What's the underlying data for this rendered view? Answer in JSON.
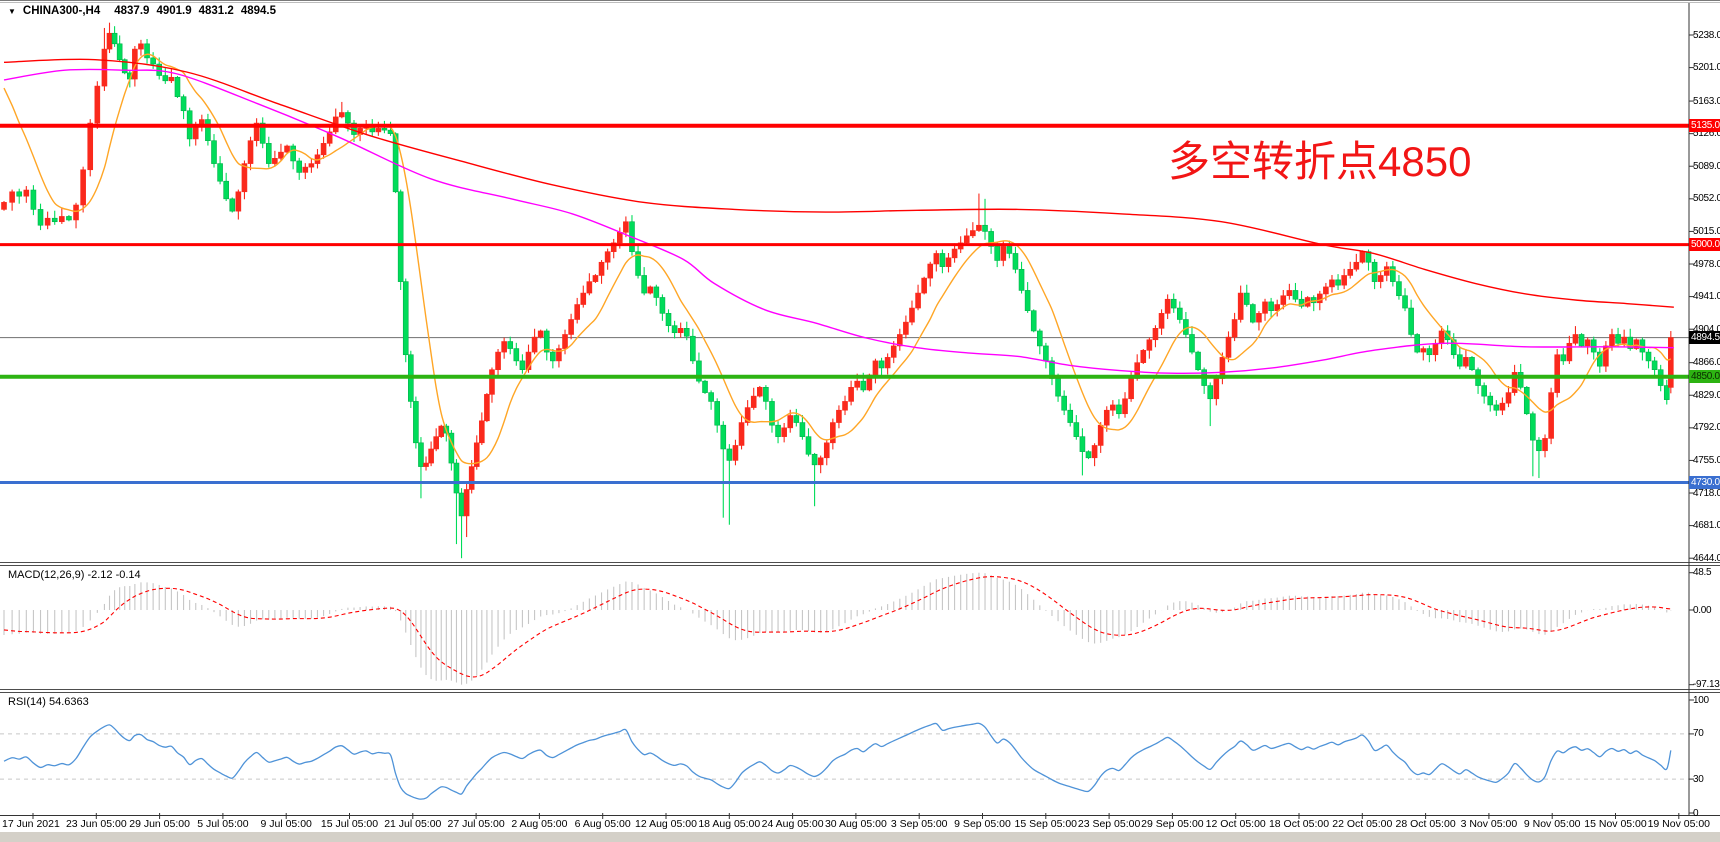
{
  "header": {
    "dropdown_icon": "▼",
    "symbol": "CHINA300-,H4",
    "open": "4837.9",
    "high": "4901.9",
    "low": "4831.2",
    "close": "4894.5"
  },
  "annotation": {
    "text": "多空转折点4850",
    "color": "#f21515"
  },
  "price_axis": {
    "ticks": [
      "5238.0",
      "5201.0",
      "5163.0",
      "5126.0",
      "5089.0",
      "5052.0",
      "5015.0",
      "4978.0",
      "4941.0",
      "4904.0",
      "4866.0",
      "4829.0",
      "4792.0",
      "4755.0",
      "4718.0",
      "4681.0",
      "4644.0"
    ]
  },
  "badges": [
    {
      "label": "5135.0",
      "price": 5135,
      "bg": "#ff0000",
      "fg": "#ffffff"
    },
    {
      "label": "5000.0",
      "price": 5000,
      "bg": "#ff0000",
      "fg": "#ffffff"
    },
    {
      "label": "4894.5",
      "price": 4894.5,
      "bg": "#000000",
      "fg": "#ffffff"
    },
    {
      "label": "4850.0",
      "price": 4850,
      "bg": "#2db312",
      "fg": "#0a2a00"
    },
    {
      "label": "4730.0",
      "price": 4730,
      "bg": "#3a6fd0",
      "fg": "#ffffff"
    }
  ],
  "macd_panel": {
    "label": "MACD(12,26,9) -2.12 -0.14",
    "ticks": [
      "48.5",
      "0.00",
      "-97.13"
    ],
    "tick_values": [
      48.5,
      0,
      -97.13
    ]
  },
  "rsi_panel": {
    "label": "RSI(14) 54.6363",
    "ticks": [
      "100",
      "70",
      "30",
      "0"
    ],
    "tick_values": [
      100,
      70,
      30,
      0
    ],
    "levels": [
      70,
      30
    ]
  },
  "time_axis": {
    "labels": [
      "17 Jun 2021",
      "23 Jun 05:00",
      "29 Jun 05:00",
      "5 Jul 05:00",
      "9 Jul 05:00",
      "15 Jul 05:00",
      "21 Jul 05:00",
      "27 Jul 05:00",
      "2 Aug 05:00",
      "6 Aug 05:00",
      "12 Aug 05:00",
      "18 Aug 05:00",
      "24 Aug 05:00",
      "30 Aug 05:00",
      "3 Sep 05:00",
      "9 Sep 05:00",
      "15 Sep 05:00",
      "23 Sep 05:00",
      "29 Sep 05:00",
      "12 Oct 05:00",
      "18 Oct 05:00",
      "22 Oct 05:00",
      "28 Oct 05:00",
      "3 Nov 05:00",
      "9 Nov 05:00",
      "15 Nov 05:00",
      "19 Nov 05:00"
    ]
  },
  "chart_data": {
    "type": "candlestick",
    "symbol": "CHINA300-",
    "timeframe": "H4",
    "title": "CHINA300-,H4  4837.9 4901.9 4831.2 4894.5",
    "last_candle": {
      "open": 4837.9,
      "high": 4901.9,
      "low": 4831.2,
      "close": 4894.5
    },
    "ylim": [
      4644,
      5238
    ],
    "indicators": [
      "MACD(12,26,9)",
      "RSI(14)"
    ],
    "macd_values": {
      "main": -2.12,
      "signal": -0.14,
      "max": 48.5,
      "min": -97.13
    },
    "rsi_value": 54.6363,
    "horizontal_levels": [
      {
        "price": 5135,
        "color": "#ff0000",
        "width": 4,
        "style": "support-resistance"
      },
      {
        "price": 5000,
        "color": "#ff0000",
        "width": 3,
        "style": "support-resistance"
      },
      {
        "price": 4850,
        "color": "#2db312",
        "width": 4,
        "style": "pivot"
      },
      {
        "price": 4730,
        "color": "#3a6fd0",
        "width": 3,
        "style": "support"
      },
      {
        "price": 4894.5,
        "color": "#808080",
        "width": 1.2,
        "style": "current-price"
      }
    ],
    "colors": {
      "bull": "#fa291c",
      "bear": "#00dc5a",
      "bear_border": "#00b14a",
      "ma_red": "#ff0000",
      "ma_magenta": "#ff00ff",
      "ma_orange": "#ffa626",
      "macd_hist": "#c6c6c6",
      "macd_signal": "#ff0000",
      "rsi": "#4f93d8",
      "axis": "#333333",
      "grid_dash": "#c8c8c8"
    },
    "closes": [
      [
        0,
        5048
      ],
      [
        8,
        5060
      ],
      [
        15,
        5055
      ],
      [
        22,
        5062
      ],
      [
        29,
        5040
      ],
      [
        36,
        5022
      ],
      [
        43,
        5030
      ],
      [
        50,
        5026
      ],
      [
        57,
        5032
      ],
      [
        64,
        5028
      ],
      [
        71,
        5045
      ],
      [
        78,
        5085
      ],
      [
        85,
        5138
      ],
      [
        92,
        5180
      ],
      [
        99,
        5222
      ],
      [
        104,
        5240
      ],
      [
        109,
        5228
      ],
      [
        114,
        5210
      ],
      [
        119,
        5195
      ],
      [
        124,
        5188
      ],
      [
        129,
        5222
      ],
      [
        135,
        5228
      ],
      [
        141,
        5212
      ],
      [
        147,
        5205
      ],
      [
        153,
        5192
      ],
      [
        159,
        5186
      ],
      [
        165,
        5190
      ],
      [
        171,
        5168
      ],
      [
        177,
        5152
      ],
      [
        183,
        5120
      ],
      [
        189,
        5135
      ],
      [
        195,
        5142
      ],
      [
        201,
        5118
      ],
      [
        207,
        5092
      ],
      [
        213,
        5072
      ],
      [
        219,
        5052
      ],
      [
        225,
        5038
      ],
      [
        231,
        5060
      ],
      [
        237,
        5092
      ],
      [
        243,
        5118
      ],
      [
        249,
        5138
      ],
      [
        255,
        5115
      ],
      [
        261,
        5092
      ],
      [
        267,
        5098
      ],
      [
        273,
        5105
      ],
      [
        279,
        5112
      ],
      [
        285,
        5095
      ],
      [
        291,
        5082
      ],
      [
        297,
        5088
      ],
      [
        303,
        5092
      ],
      [
        309,
        5102
      ],
      [
        315,
        5115
      ],
      [
        321,
        5128
      ],
      [
        327,
        5145
      ],
      [
        333,
        5150
      ],
      [
        339,
        5138
      ],
      [
        345,
        5125
      ],
      [
        351,
        5132
      ],
      [
        357,
        5136
      ],
      [
        363,
        5128
      ],
      [
        369,
        5132
      ],
      [
        375,
        5130
      ],
      [
        381,
        5126
      ],
      [
        386,
        5060
      ],
      [
        391,
        4958
      ],
      [
        396,
        4875
      ],
      [
        401,
        4822
      ],
      [
        406,
        4775
      ],
      [
        411,
        4748
      ],
      [
        416,
        4752
      ],
      [
        421,
        4768
      ],
      [
        426,
        4782
      ],
      [
        431,
        4794
      ],
      [
        436,
        4786
      ],
      [
        441,
        4752
      ],
      [
        446,
        4718
      ],
      [
        451,
        4692
      ],
      [
        456,
        4722
      ],
      [
        461,
        4748
      ],
      [
        466,
        4775
      ],
      [
        471,
        4800
      ],
      [
        476,
        4830
      ],
      [
        481,
        4858
      ],
      [
        487,
        4878
      ],
      [
        493,
        4890
      ],
      [
        499,
        4882
      ],
      [
        505,
        4868
      ],
      [
        511,
        4858
      ],
      [
        517,
        4878
      ],
      [
        523,
        4895
      ],
      [
        529,
        4902
      ],
      [
        535,
        4878
      ],
      [
        541,
        4868
      ],
      [
        547,
        4882
      ],
      [
        553,
        4898
      ],
      [
        559,
        4915
      ],
      [
        565,
        4932
      ],
      [
        571,
        4945
      ],
      [
        577,
        4958
      ],
      [
        583,
        4965
      ],
      [
        589,
        4980
      ],
      [
        595,
        4992
      ],
      [
        601,
        5002
      ],
      [
        607,
        5014
      ],
      [
        613,
        5026
      ],
      [
        619,
        4992
      ],
      [
        625,
        4965
      ],
      [
        631,
        4945
      ],
      [
        637,
        4952
      ],
      [
        643,
        4940
      ],
      [
        649,
        4922
      ],
      [
        655,
        4908
      ],
      [
        661,
        4900
      ],
      [
        667,
        4905
      ],
      [
        673,
        4896
      ],
      [
        679,
        4868
      ],
      [
        685,
        4845
      ],
      [
        691,
        4832
      ],
      [
        697,
        4822
      ],
      [
        703,
        4795
      ],
      [
        709,
        4768
      ],
      [
        715,
        4755
      ],
      [
        721,
        4772
      ],
      [
        727,
        4798
      ],
      [
        733,
        4815
      ],
      [
        739,
        4828
      ],
      [
        745,
        4838
      ],
      [
        751,
        4822
      ],
      [
        757,
        4795
      ],
      [
        763,
        4782
      ],
      [
        769,
        4792
      ],
      [
        775,
        4806
      ],
      [
        781,
        4798
      ],
      [
        787,
        4782
      ],
      [
        793,
        4762
      ],
      [
        799,
        4750
      ],
      [
        805,
        4758
      ],
      [
        811,
        4775
      ],
      [
        817,
        4798
      ],
      [
        823,
        4812
      ],
      [
        829,
        4822
      ],
      [
        835,
        4838
      ],
      [
        841,
        4845
      ],
      [
        847,
        4835
      ],
      [
        853,
        4852
      ],
      [
        859,
        4868
      ],
      [
        865,
        4860
      ],
      [
        871,
        4872
      ],
      [
        877,
        4885
      ],
      [
        883,
        4898
      ],
      [
        889,
        4912
      ],
      [
        895,
        4928
      ],
      [
        901,
        4945
      ],
      [
        907,
        4962
      ],
      [
        913,
        4978
      ],
      [
        919,
        4990
      ],
      [
        925,
        4975
      ],
      [
        931,
        4985
      ],
      [
        937,
        4995
      ],
      [
        943,
        5002
      ],
      [
        949,
        5010
      ],
      [
        955,
        5016
      ],
      [
        961,
        5022
      ],
      [
        967,
        5015
      ],
      [
        973,
        4998
      ],
      [
        979,
        4982
      ],
      [
        985,
        4998
      ],
      [
        991,
        4990
      ],
      [
        997,
        4972
      ],
      [
        1003,
        4948
      ],
      [
        1009,
        4925
      ],
      [
        1015,
        4902
      ],
      [
        1021,
        4885
      ],
      [
        1027,
        4868
      ],
      [
        1033,
        4848
      ],
      [
        1039,
        4828
      ],
      [
        1045,
        4812
      ],
      [
        1051,
        4798
      ],
      [
        1057,
        4782
      ],
      [
        1063,
        4765
      ],
      [
        1069,
        4758
      ],
      [
        1075,
        4772
      ],
      [
        1081,
        4795
      ],
      [
        1087,
        4812
      ],
      [
        1093,
        4818
      ],
      [
        1099,
        4808
      ],
      [
        1105,
        4825
      ],
      [
        1111,
        4848
      ],
      [
        1117,
        4866
      ],
      [
        1123,
        4880
      ],
      [
        1129,
        4892
      ],
      [
        1135,
        4905
      ],
      [
        1141,
        4922
      ],
      [
        1147,
        4938
      ],
      [
        1153,
        4928
      ],
      [
        1159,
        4915
      ],
      [
        1165,
        4898
      ],
      [
        1171,
        4878
      ],
      [
        1177,
        4858
      ],
      [
        1183,
        4840
      ],
      [
        1189,
        4825
      ],
      [
        1195,
        4848
      ],
      [
        1201,
        4872
      ],
      [
        1207,
        4895
      ],
      [
        1213,
        4915
      ],
      [
        1219,
        4945
      ],
      [
        1225,
        4932
      ],
      [
        1231,
        4912
      ],
      [
        1237,
        4922
      ],
      [
        1243,
        4935
      ],
      [
        1249,
        4925
      ],
      [
        1255,
        4932
      ],
      [
        1261,
        4942
      ],
      [
        1267,
        4948
      ],
      [
        1273,
        4938
      ],
      [
        1279,
        4930
      ],
      [
        1285,
        4940
      ],
      [
        1291,
        4934
      ],
      [
        1297,
        4944
      ],
      [
        1303,
        4952
      ],
      [
        1309,
        4960
      ],
      [
        1315,
        4954
      ],
      [
        1321,
        4965
      ],
      [
        1327,
        4972
      ],
      [
        1333,
        4980
      ],
      [
        1339,
        4992
      ],
      [
        1345,
        4980
      ],
      [
        1351,
        4958
      ],
      [
        1357,
        4965
      ],
      [
        1363,
        4975
      ],
      [
        1369,
        4958
      ],
      [
        1375,
        4942
      ],
      [
        1381,
        4928
      ],
      [
        1387,
        4898
      ],
      [
        1393,
        4878
      ],
      [
        1399,
        4882
      ],
      [
        1405,
        4875
      ],
      [
        1411,
        4888
      ],
      [
        1417,
        4902
      ],
      [
        1423,
        4892
      ],
      [
        1429,
        4875
      ],
      [
        1435,
        4862
      ],
      [
        1441,
        4872
      ],
      [
        1447,
        4858
      ],
      [
        1453,
        4840
      ],
      [
        1459,
        4828
      ],
      [
        1465,
        4818
      ],
      [
        1471,
        4812
      ],
      [
        1477,
        4820
      ],
      [
        1483,
        4832
      ],
      [
        1489,
        4855
      ],
      [
        1495,
        4838
      ],
      [
        1501,
        4808
      ],
      [
        1507,
        4778
      ],
      [
        1513,
        4766
      ],
      [
        1519,
        4780
      ],
      [
        1525,
        4832
      ],
      [
        1531,
        4875
      ],
      [
        1537,
        4868
      ],
      [
        1543,
        4888
      ],
      [
        1549,
        4898
      ],
      [
        1555,
        4885
      ],
      [
        1561,
        4892
      ],
      [
        1567,
        4878
      ],
      [
        1573,
        4862
      ],
      [
        1579,
        4885
      ],
      [
        1585,
        4898
      ],
      [
        1591,
        4888
      ],
      [
        1597,
        4895
      ],
      [
        1603,
        4882
      ],
      [
        1609,
        4892
      ],
      [
        1615,
        4878
      ],
      [
        1621,
        4868
      ],
      [
        1627,
        4858
      ],
      [
        1633,
        4840
      ],
      [
        1639,
        4824
      ],
      [
        1643,
        4894.5
      ]
    ],
    "wick_overrides": [
      [
        99,
        "h",
        5246
      ],
      [
        104,
        "h",
        5252
      ],
      [
        109,
        "h",
        5248
      ],
      [
        333,
        "h",
        5162
      ],
      [
        613,
        "h",
        5032
      ],
      [
        961,
        "h",
        5058
      ],
      [
        967,
        "h",
        5052
      ],
      [
        411,
        "l",
        4712
      ],
      [
        446,
        "l",
        4660
      ],
      [
        451,
        "l",
        4644
      ],
      [
        456,
        "l",
        4668
      ],
      [
        709,
        "l",
        4690
      ],
      [
        715,
        "l",
        4682
      ],
      [
        799,
        "l",
        4703
      ],
      [
        1063,
        "l",
        4738
      ],
      [
        1189,
        "l",
        4794
      ],
      [
        1507,
        "l",
        4737
      ],
      [
        1513,
        "l",
        4735
      ]
    ],
    "ma_red": [
      [
        0,
        5207
      ],
      [
        90,
        5210
      ],
      [
        180,
        5196
      ],
      [
        270,
        5160
      ],
      [
        360,
        5124
      ],
      [
        450,
        5095
      ],
      [
        540,
        5068
      ],
      [
        630,
        5048
      ],
      [
        720,
        5040
      ],
      [
        810,
        5037
      ],
      [
        900,
        5039
      ],
      [
        1000,
        5040
      ],
      [
        1100,
        5035
      ],
      [
        1200,
        5026
      ],
      [
        1300,
        5000
      ],
      [
        1350,
        4990
      ],
      [
        1400,
        4972
      ],
      [
        1450,
        4956
      ],
      [
        1500,
        4944
      ],
      [
        1550,
        4937
      ],
      [
        1600,
        4933
      ],
      [
        1646,
        4929
      ]
    ],
    "ma_magenta": [
      [
        0,
        5187
      ],
      [
        60,
        5198
      ],
      [
        120,
        5198
      ],
      [
        170,
        5194
      ],
      [
        250,
        5160
      ],
      [
        330,
        5122
      ],
      [
        420,
        5075
      ],
      [
        500,
        5052
      ],
      [
        560,
        5035
      ],
      [
        620,
        5008
      ],
      [
        670,
        4983
      ],
      [
        700,
        4956
      ],
      [
        750,
        4926
      ],
      [
        800,
        4911
      ],
      [
        850,
        4894
      ],
      [
        900,
        4883
      ],
      [
        950,
        4877
      ],
      [
        1000,
        4873
      ],
      [
        1050,
        4863
      ],
      [
        1100,
        4857
      ],
      [
        1150,
        4854
      ],
      [
        1200,
        4855
      ],
      [
        1250,
        4860
      ],
      [
        1300,
        4869
      ],
      [
        1350,
        4880
      ],
      [
        1420,
        4888
      ],
      [
        1500,
        4884
      ],
      [
        1580,
        4884
      ],
      [
        1646,
        4883
      ]
    ]
  }
}
